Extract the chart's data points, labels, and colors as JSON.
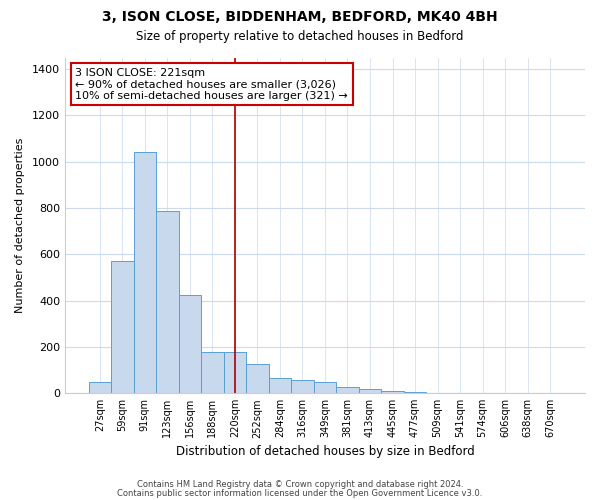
{
  "title": "3, ISON CLOSE, BIDDENHAM, BEDFORD, MK40 4BH",
  "subtitle": "Size of property relative to detached houses in Bedford",
  "xlabel": "Distribution of detached houses by size in Bedford",
  "ylabel": "Number of detached properties",
  "bar_color": "#c8d8ed",
  "bar_edge_color": "#5a9fd4",
  "background_color": "#ffffff",
  "grid_color": "#ccdaec",
  "bin_labels": [
    "27sqm",
    "59sqm",
    "91sqm",
    "123sqm",
    "156sqm",
    "188sqm",
    "220sqm",
    "252sqm",
    "284sqm",
    "316sqm",
    "349sqm",
    "381sqm",
    "413sqm",
    "445sqm",
    "477sqm",
    "509sqm",
    "541sqm",
    "574sqm",
    "606sqm",
    "638sqm",
    "670sqm"
  ],
  "bar_values": [
    50,
    570,
    1040,
    785,
    425,
    180,
    180,
    125,
    65,
    55,
    50,
    25,
    20,
    10,
    5,
    0,
    0,
    0,
    0,
    0,
    0
  ],
  "vline_x_idx": 6,
  "vline_color": "#aa0000",
  "annotation_title": "3 ISON CLOSE: 221sqm",
  "annotation_line1": "← 90% of detached houses are smaller (3,026)",
  "annotation_line2": "10% of semi-detached houses are larger (321) →",
  "annotation_box_color": "#ffffff",
  "annotation_box_edge": "#cc0000",
  "footer1": "Contains HM Land Registry data © Crown copyright and database right 2024.",
  "footer2": "Contains public sector information licensed under the Open Government Licence v3.0.",
  "ylim": [
    0,
    1450
  ],
  "yticks": [
    0,
    200,
    400,
    600,
    800,
    1000,
    1200,
    1400
  ]
}
